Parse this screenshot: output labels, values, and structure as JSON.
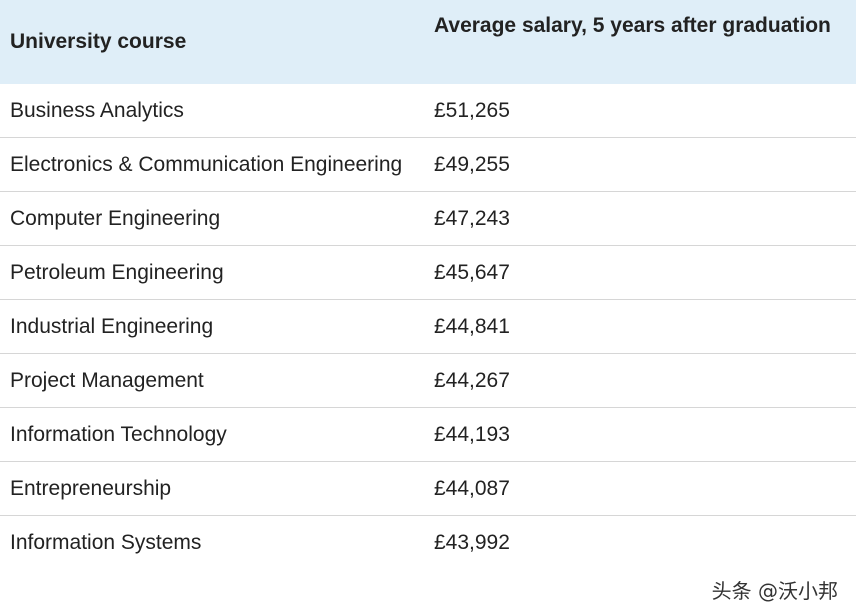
{
  "table": {
    "headers": [
      "University course",
      "Average salary, 5 years after graduation"
    ],
    "rows": [
      {
        "course": "Business Analytics",
        "salary": "£51,265"
      },
      {
        "course": "Electronics & Communication Engineering",
        "salary": "£49,255"
      },
      {
        "course": "Computer Engineering",
        "salary": "£47,243"
      },
      {
        "course": "Petroleum Engineering",
        "salary": "£45,647"
      },
      {
        "course": "Industrial Engineering",
        "salary": "£44,841"
      },
      {
        "course": "Project Management",
        "salary": "£44,267"
      },
      {
        "course": "Information Technology",
        "salary": "£44,193"
      },
      {
        "course": "Entrepreneurship",
        "salary": "£44,087"
      },
      {
        "course": "Information Systems",
        "salary": "£43,992"
      }
    ]
  },
  "watermark": "头条 @沃小邦"
}
